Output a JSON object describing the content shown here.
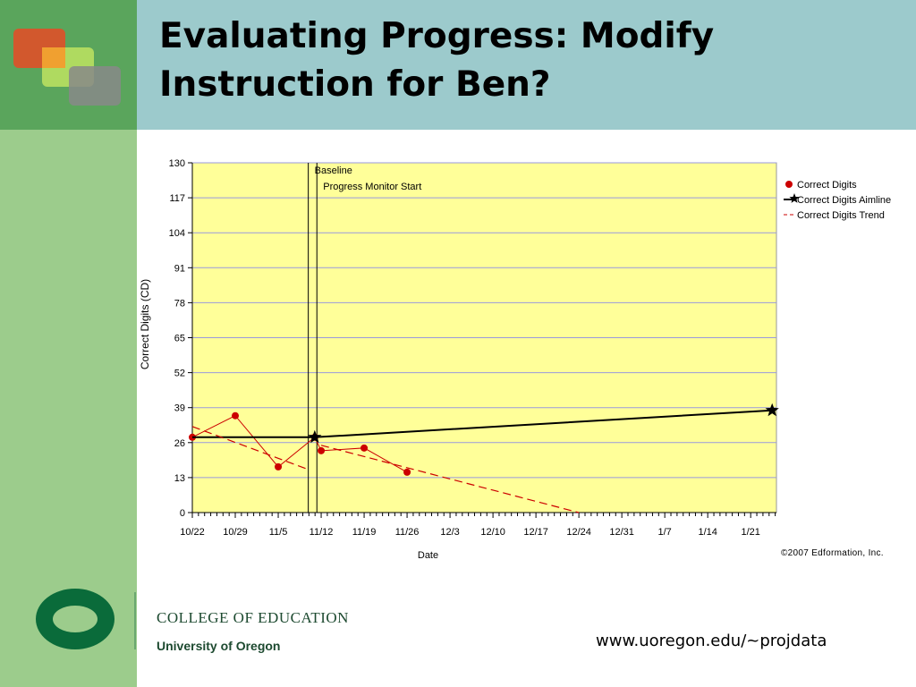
{
  "slide": {
    "title": "Evaluating Progress: Modify Instruction for Ben?",
    "footer_url": "www.uoregon.edu/~projdata",
    "college": "COLLEGE OF EDUCATION",
    "university": "University of Oregon",
    "logo_letter": "O",
    "colors": {
      "sidebar": "#9ccc8c",
      "sidebar_top": "#5aa55c",
      "header": "#9ccacc",
      "logo_red": "#d9532a",
      "logo_orange": "#f0a030",
      "logo_green": "#b8e060",
      "logo_gray": "#888888",
      "uo_green": "#0a6b3a"
    }
  },
  "chart_data": {
    "type": "line",
    "xlabel": "Date",
    "ylabel": "Correct Digits (CD)",
    "ylim": [
      0,
      130
    ],
    "yticks": [
      0,
      13,
      26,
      39,
      52,
      65,
      78,
      91,
      104,
      117,
      130
    ],
    "x_ticks": [
      "10/22",
      "10/29",
      "11/5",
      "11/12",
      "11/19",
      "11/26",
      "12/3",
      "12/10",
      "12/17",
      "12/24",
      "12/31",
      "1/7",
      "1/14",
      "1/21"
    ],
    "x_unit": "week index from 10/22 (1 = one week)",
    "xlim": [
      0,
      13.6
    ],
    "grid": true,
    "plot_background": "#ffff99",
    "copyright": "©2007 Edformation, Inc.",
    "annotations": [
      {
        "label": "Baseline",
        "x": 2.7
      },
      {
        "label": "Progress Monitor Start",
        "x": 2.9
      }
    ],
    "legend_position": "right",
    "series": [
      {
        "name": "Correct Digits",
        "color": "#cc0000",
        "marker": "circle",
        "points": [
          {
            "x": 0.0,
            "y": 28
          },
          {
            "x": 1.0,
            "y": 36
          },
          {
            "x": 2.0,
            "y": 17
          },
          {
            "x": 2.85,
            "y": 28
          },
          {
            "x": 3.0,
            "y": 23
          },
          {
            "x": 4.0,
            "y": 24
          },
          {
            "x": 5.0,
            "y": 15
          }
        ]
      },
      {
        "name": "Correct Digits Aimline",
        "color": "#000000",
        "marker": "star",
        "points": [
          {
            "x": 0.0,
            "y": 28
          },
          {
            "x": 2.85,
            "y": 28
          },
          {
            "x": 13.5,
            "y": 38
          }
        ]
      },
      {
        "name": "Correct Digits Trend",
        "color": "#cc0000",
        "dashed": true,
        "segments": [
          [
            {
              "x": 0.0,
              "y": 32
            },
            {
              "x": 2.7,
              "y": 16
            }
          ],
          [
            {
              "x": 3.0,
              "y": 25
            },
            {
              "x": 9.0,
              "y": 0
            }
          ]
        ]
      }
    ]
  }
}
